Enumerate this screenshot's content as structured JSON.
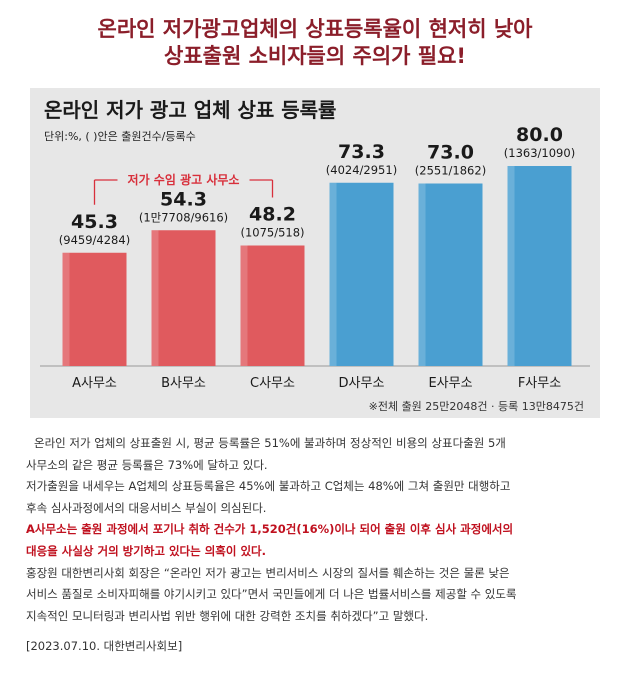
{
  "headline": {
    "line1": "온라인 저가광고업체의 상표등록율이 현저히 낮아",
    "line2": "상표출원 소비자들의 주의가 필요!"
  },
  "chart_data": {
    "type": "bar",
    "title": "온라인 저가 광고 업체 상표 등록률",
    "unit_note": "단위:%, ( )안은 출원건수/등록수",
    "categories": [
      "A사무소",
      "B사무소",
      "C사무소",
      "D사무소",
      "E사무소",
      "F사무소"
    ],
    "values": [
      45.3,
      54.3,
      48.2,
      73.3,
      73.0,
      80.0
    ],
    "value_labels": [
      "45.3",
      "54.3",
      "48.2",
      "73.3",
      "73.0",
      "80.0"
    ],
    "sub_labels": [
      "(9459/4284)",
      "(1만7708/9616)",
      "(1075/518)",
      "(4024/2951)",
      "(2551/1862)",
      "(1363/1090)"
    ],
    "bar_colors": [
      "#e05a5e",
      "#e05a5e",
      "#e05a5e",
      "#4a9fd1",
      "#4a9fd1",
      "#4a9fd1"
    ],
    "group_bracket": {
      "label": "저가 수임 광고 사무소",
      "members": [
        0,
        2
      ],
      "color": "#d8303c"
    },
    "ylim": [
      0,
      90
    ],
    "footnote": "※전체 출원 25만2048건 · 등록 13만8475건"
  },
  "body": {
    "p1a": "온라인 저가 업체의 상표출원 시, 평균 등록률은 51%에 불과하며 정상적인 비용의 상표다출원 5개",
    "p1b": "사무소의 같은 평균 등록률은 73%에 달하고 있다.",
    "p2a": "저가출원을 내세우는 A업체의 상표등록율은 45%에 불과하고 C업체는 48%에 그쳐 출원만 대행하고",
    "p2b": "후속 심사과정에서의 대응서비스 부실이 의심된다.",
    "p3a": "A사무소는 출원 과정에서 포기나 취하 건수가 1,520건(16%)이나 되어 출원 이후 심사 과정에서의",
    "p3b": "대응을 사실상 거의 방기하고 있다는 의혹이 있다.",
    "p4a": "홍장원 대한변리사회 회장은 “온라인 저가 광고는 변리서비스 시장의 질서를 훼손하는 것은 물론 낮은",
    "p4b": "서비스 품질로 소비자피해를 야기시키고 있다”면서 국민들에게 더 나은 법률서비스를 제공할 수 있도록",
    "p4c": "지속적인 모니터링과 변리사법 위반 행위에 대한 강력한 조치를 취하겠다”고 말했다.",
    "source": "[2023.07.10. 대한변리사회보]"
  }
}
